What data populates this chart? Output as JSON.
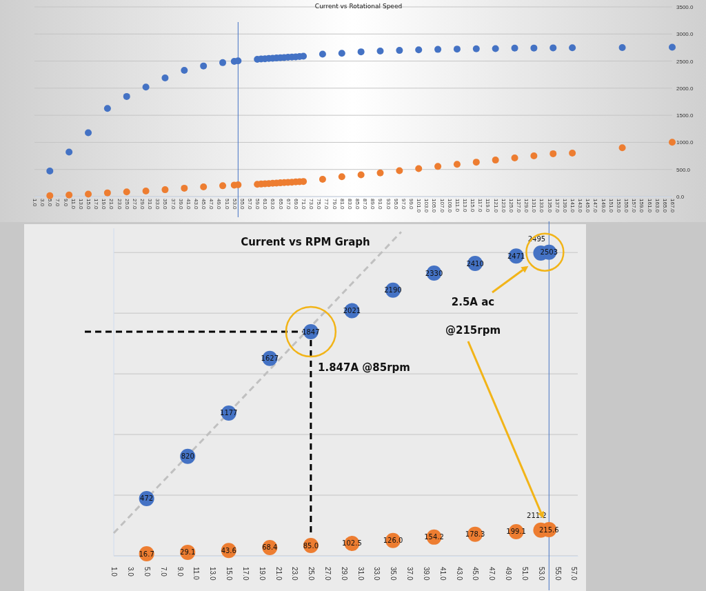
{
  "chart_data": [
    {
      "type": "scatter",
      "title": "Current vs Rotational Speed",
      "xlim": [
        1,
        167
      ],
      "ylim": [
        0,
        3500
      ],
      "xticks": [
        {
          "value": 1,
          "label": "1.0"
        },
        {
          "value": 3,
          "label": "3.0"
        },
        {
          "value": 5,
          "label": "5.0"
        },
        {
          "value": 7,
          "label": "7.0"
        },
        {
          "value": 9,
          "label": "9.0"
        },
        {
          "value": 11,
          "label": "11.0"
        },
        {
          "value": 13,
          "label": "13.0"
        },
        {
          "value": 15,
          "label": "15.0"
        },
        {
          "value": 17,
          "label": "17.0"
        },
        {
          "value": 19,
          "label": "19.0"
        },
        {
          "value": 21,
          "label": "21.0"
        },
        {
          "value": 23,
          "label": "23.0"
        },
        {
          "value": 25,
          "label": "25.0"
        },
        {
          "value": 27,
          "label": "27.0"
        },
        {
          "value": 29,
          "label": "29.0"
        },
        {
          "value": 31,
          "label": "31.0"
        },
        {
          "value": 33,
          "label": "33.0"
        },
        {
          "value": 35,
          "label": "35.0"
        },
        {
          "value": 37,
          "label": "37.0"
        },
        {
          "value": 39,
          "label": "39.0"
        },
        {
          "value": 41,
          "label": "41.0"
        },
        {
          "value": 43,
          "label": "43.0"
        },
        {
          "value": 45,
          "label": "45.0"
        },
        {
          "value": 47,
          "label": "47.0"
        },
        {
          "value": 49,
          "label": "49.0"
        },
        {
          "value": 51,
          "label": "51.0"
        },
        {
          "value": 53,
          "label": "53.0"
        },
        {
          "value": 55,
          "label": "55.0"
        },
        {
          "value": 57,
          "label": "57.0"
        },
        {
          "value": 59,
          "label": "59.0"
        },
        {
          "value": 61,
          "label": "61.0"
        },
        {
          "value": 63,
          "label": "63.0"
        },
        {
          "value": 65,
          "label": "65.0"
        },
        {
          "value": 67,
          "label": "67.0"
        },
        {
          "value": 69,
          "label": "69.0"
        },
        {
          "value": 71,
          "label": "71.0"
        },
        {
          "value": 73,
          "label": "73.0"
        },
        {
          "value": 75,
          "label": "75.0"
        },
        {
          "value": 77,
          "label": "77.0"
        },
        {
          "value": 79,
          "label": "79.0"
        },
        {
          "value": 81,
          "label": "81.0"
        },
        {
          "value": 83,
          "label": "83.0"
        },
        {
          "value": 85,
          "label": "85.0"
        },
        {
          "value": 87,
          "label": "87.0"
        },
        {
          "value": 89,
          "label": "89.0"
        },
        {
          "value": 91,
          "label": "91.0"
        },
        {
          "value": 93,
          "label": "93.0"
        },
        {
          "value": 95,
          "label": "95.0"
        },
        {
          "value": 97,
          "label": "97.0"
        },
        {
          "value": 99,
          "label": "99.0"
        },
        {
          "value": 101,
          "label": "101.0"
        },
        {
          "value": 103,
          "label": "103.0"
        },
        {
          "value": 105,
          "label": "105.0"
        },
        {
          "value": 107,
          "label": "107.0"
        },
        {
          "value": 109,
          "label": "109.0"
        },
        {
          "value": 111,
          "label": "111.0"
        },
        {
          "value": 113,
          "label": "113.0"
        },
        {
          "value": 115,
          "label": "115.0"
        },
        {
          "value": 117,
          "label": "117.0"
        },
        {
          "value": 119,
          "label": "119.0"
        },
        {
          "value": 121,
          "label": "121.0"
        },
        {
          "value": 123,
          "label": "123.0"
        },
        {
          "value": 125,
          "label": "125.0"
        },
        {
          "value": 127,
          "label": "127.0"
        },
        {
          "value": 129,
          "label": "129.0"
        },
        {
          "value": 131,
          "label": "131.0"
        },
        {
          "value": 133,
          "label": "133.0"
        },
        {
          "value": 135,
          "label": "135.0"
        },
        {
          "value": 137,
          "label": "137.0"
        },
        {
          "value": 139,
          "label": "139.0"
        },
        {
          "value": 141,
          "label": "141.0"
        },
        {
          "value": 143,
          "label": "143.0"
        },
        {
          "value": 145,
          "label": "145.0"
        },
        {
          "value": 147,
          "label": "147.0"
        },
        {
          "value": 149,
          "label": "149.0"
        },
        {
          "value": 151,
          "label": "151.0"
        },
        {
          "value": 153,
          "label": "153.0"
        },
        {
          "value": 155,
          "label": "155.0"
        },
        {
          "value": 157,
          "label": "157.0"
        },
        {
          "value": 159,
          "label": "159.0"
        },
        {
          "value": 161,
          "label": "161.0"
        },
        {
          "value": 163,
          "label": "163.0"
        },
        {
          "value": 165,
          "label": "165.0"
        },
        {
          "value": 167,
          "label": "167.0"
        }
      ],
      "yticks": [
        {
          "value": 0,
          "label": "0.0"
        },
        {
          "value": 500,
          "label": "500.0"
        },
        {
          "value": 1000,
          "label": "1000.0"
        },
        {
          "value": 1500,
          "label": "1500.0"
        },
        {
          "value": 2000,
          "label": "2000.0"
        },
        {
          "value": 2500,
          "label": "2500.0"
        },
        {
          "value": 3000,
          "label": "3000.0"
        },
        {
          "value": 3500,
          "label": "3500.0"
        }
      ],
      "grid": "y",
      "marker": "circle",
      "ref_lines": [
        {
          "axis": "x",
          "value": 54,
          "color": "#4472c4"
        }
      ],
      "x": [
        5,
        10,
        15,
        20,
        25,
        30,
        35,
        40,
        45,
        50,
        53,
        54,
        59,
        60,
        61,
        62,
        63,
        64,
        65,
        66,
        67,
        68,
        69,
        70,
        71,
        76,
        81,
        86,
        91,
        96,
        101,
        106,
        111,
        116,
        121,
        126,
        131,
        136,
        141,
        154,
        167
      ],
      "series": [
        {
          "color": "#4472c4",
          "values": [
            472,
            820,
            1177,
            1627,
            1847,
            2021,
            2190,
            2330,
            2410,
            2471,
            2495,
            2503,
            2533,
            2538,
            2543,
            2548,
            2552,
            2557,
            2561,
            2566,
            2570,
            2574,
            2578,
            2583,
            2589,
            2629,
            2644,
            2671,
            2686,
            2697,
            2707,
            2716,
            2722,
            2726,
            2730,
            2739,
            2741,
            2744,
            2745,
            2750,
            2756
          ]
        },
        {
          "color": "#ed7d31",
          "values": [
            16.7,
            29.1,
            43.6,
            68.4,
            85.0,
            102.5,
            126.0,
            154.2,
            178.3,
            199.1,
            211.2,
            215.6,
            227,
            231,
            236,
            240,
            244,
            248,
            253,
            257,
            261,
            265,
            270,
            274,
            278,
            318,
            365.2,
            399.9,
            436.0,
            477.8,
            515.8,
            555.3,
            595.0,
            634.4,
            673.3,
            712.5,
            751.2,
            790.3,
            802.9,
            900.0,
            1001.5
          ]
        }
      ]
    },
    {
      "type": "scatter",
      "title": "Current vs RPM Graph",
      "xlim": [
        1,
        57.5
      ],
      "ylim": [
        0,
        2700
      ],
      "xticks": [
        {
          "value": 1,
          "label": "1.0"
        },
        {
          "value": 3,
          "label": "3.0"
        },
        {
          "value": 5,
          "label": "5.0"
        },
        {
          "value": 7,
          "label": "7.0"
        },
        {
          "value": 9,
          "label": "9.0"
        },
        {
          "value": 11,
          "label": "11.0"
        },
        {
          "value": 13,
          "label": "13.0"
        },
        {
          "value": 15,
          "label": "15.0"
        },
        {
          "value": 17,
          "label": "17.0"
        },
        {
          "value": 19,
          "label": "19.0"
        },
        {
          "value": 21,
          "label": "21.0"
        },
        {
          "value": 23,
          "label": "23.0"
        },
        {
          "value": 25,
          "label": "25.0"
        },
        {
          "value": 27,
          "label": "27.0"
        },
        {
          "value": 29,
          "label": "29.0"
        },
        {
          "value": 31,
          "label": "31.0"
        },
        {
          "value": 33,
          "label": "33.0"
        },
        {
          "value": 35,
          "label": "35.0"
        },
        {
          "value": 37,
          "label": "37.0"
        },
        {
          "value": 39,
          "label": "39.0"
        },
        {
          "value": 41,
          "label": "41.0"
        },
        {
          "value": 43,
          "label": "43.0"
        },
        {
          "value": 45,
          "label": "45.0"
        },
        {
          "value": 47,
          "label": "47.0"
        },
        {
          "value": 49,
          "label": "49.0"
        },
        {
          "value": 51,
          "label": "51.0"
        },
        {
          "value": 53,
          "label": "53.0"
        },
        {
          "value": 55,
          "label": "55.0"
        },
        {
          "value": 57,
          "label": "57.0"
        }
      ],
      "yticks": [
        {
          "value": 0,
          "label": null
        },
        {
          "value": 500,
          "label": null
        },
        {
          "value": 1000,
          "label": null
        },
        {
          "value": 1500,
          "label": null
        },
        {
          "value": 2000,
          "label": null
        },
        {
          "value": 2500,
          "label": null
        }
      ],
      "tick_labels": "x",
      "grid": "y",
      "marker": "circle",
      "ref_lines": [
        {
          "axis": "x",
          "value": 54,
          "color": "#4472c4"
        }
      ],
      "annotations": [
        "1.847A @85rpm",
        "2.5A ac",
        "@215rpm"
      ],
      "x": [
        5,
        10,
        15,
        20,
        25,
        30,
        35,
        40,
        45,
        50,
        53,
        54
      ],
      "series": [
        {
          "color": "#4472c4",
          "values": [
            472,
            820,
            1177,
            1627,
            1847,
            2021,
            2190,
            2330,
            2410,
            2471,
            2495,
            2503
          ],
          "value_labels": [
            "472",
            "820",
            "1177",
            "1627",
            "1847",
            "2021",
            "2190",
            "2330",
            "2410",
            "2471",
            "2495",
            "2503"
          ]
        },
        {
          "color": "#ed7d31",
          "values": [
            16.7,
            29.1,
            43.6,
            68.4,
            85.0,
            102.5,
            126.0,
            154.2,
            178.3,
            199.1,
            211.2,
            215.6
          ],
          "value_labels": [
            "16.7",
            "29.1",
            "43.6",
            "68.4",
            "85.0",
            "102.5",
            "126.0",
            "154.2",
            "178.3",
            "199.1",
            "211.2",
            "215.6"
          ]
        },
        {
          "type": "line",
          "color": "#c0c0c0",
          "line_style": "dashed",
          "marker": "none",
          "x": [
            1,
            36
          ],
          "values": [
            188,
            2670
          ]
        }
      ]
    }
  ]
}
